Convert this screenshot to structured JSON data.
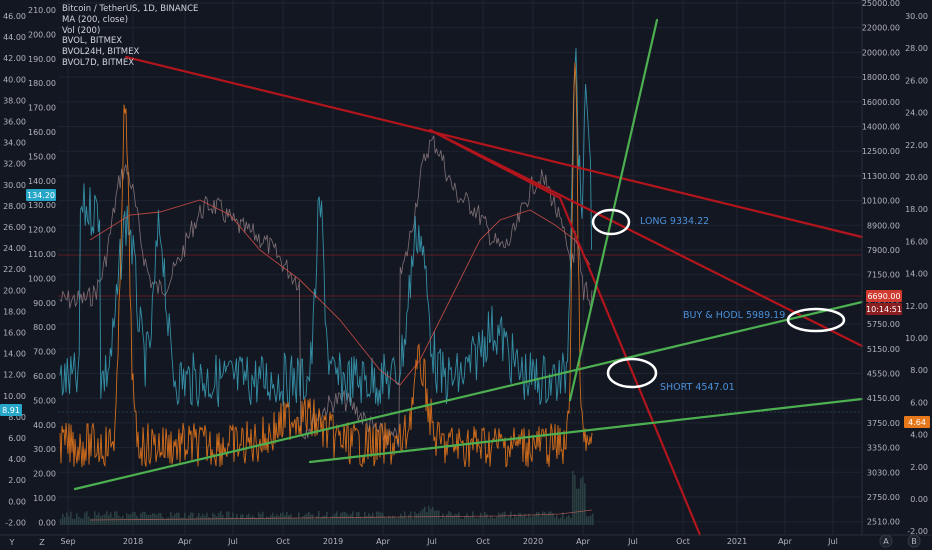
{
  "legend": {
    "title": "Bitcoin / TetherUS, 1D, BINANCE",
    "items": [
      "MA (200, close)",
      "Vol (200)",
      "BVOL, BITMEX",
      "BVOL24H, BITMEX",
      "BVOL7D, BITMEX"
    ]
  },
  "chart_data": {
    "type": "line",
    "x_ticks": [
      "Sep",
      "2018",
      "Apr",
      "Jul",
      "Oct",
      "2019",
      "Apr",
      "Jul",
      "Oct",
      "2020",
      "Apr",
      "Jul",
      "Oct",
      "2021",
      "Apr",
      "Jul"
    ],
    "left_axis_ticks": [
      "46.00",
      "44.00",
      "42.00",
      "40.00",
      "38.00",
      "36.00",
      "34.00",
      "32.00",
      "30.00",
      "28.00",
      "26.00",
      "24.00",
      "22.00",
      "20.00",
      "18.00",
      "16.00",
      "14.00",
      "12.00",
      "10.00",
      "8.00",
      "6.00",
      "4.00",
      "2.00",
      "0.00",
      "-2.00"
    ],
    "left_axis2_ticks": [
      "210.00",
      "200.00",
      "190.00",
      "180.00",
      "170.00",
      "160.00",
      "150.00",
      "140.00",
      "130.00",
      "120.00",
      "110.00",
      "100.00",
      "90.00",
      "80.00",
      "70.00",
      "60.00",
      "50.00",
      "40.00",
      "30.00",
      "20.00",
      "10.00",
      "0.00"
    ],
    "price_axis_ticks": [
      "25000.00",
      "22000.00",
      "20000.00",
      "18000.00",
      "16000.00",
      "14000.00",
      "12500.00",
      "11300.00",
      "10100.00",
      "8900.00",
      "7900.00",
      "7150.00",
      "6450.00",
      "5750.00",
      "5150.00",
      "4550.00",
      "4150.00",
      "3750.00",
      "3350.00",
      "3030.00",
      "2750.00",
      "2510.00"
    ],
    "right_axis_ticks": [
      "30.00",
      "28.00",
      "26.00",
      "24.00",
      "22.00",
      "20.00",
      "18.00",
      "16.00",
      "14.00",
      "12.00",
      "10.00",
      "8.00",
      "6.00",
      "4.00",
      "2.00",
      "0.00",
      "-2.00"
    ],
    "tags": {
      "left_value": "134.20",
      "left_value2": "8.91",
      "price": "6690.00",
      "countdown": "10:14:51",
      "right_value": "4.64"
    },
    "annotations": {
      "long": "LONG 9334.22",
      "hodl": "BUY & HODL 5989.19",
      "short": "SHORT 4547.01"
    },
    "x_axis_letters": [
      "Y",
      "Z"
    ],
    "axis_buttons": [
      "A",
      "B"
    ],
    "colors": {
      "background": "#131722",
      "trend_red": "#b2151c",
      "trend_green": "#4caf50",
      "bvol_cyan": "#3ba3bc",
      "bvol_orange": "#e8781c",
      "ma": "#e0524a",
      "price_tag": "#d03a2f",
      "left_tag": "#26a6c8",
      "right_tag": "#e8781c"
    }
  }
}
